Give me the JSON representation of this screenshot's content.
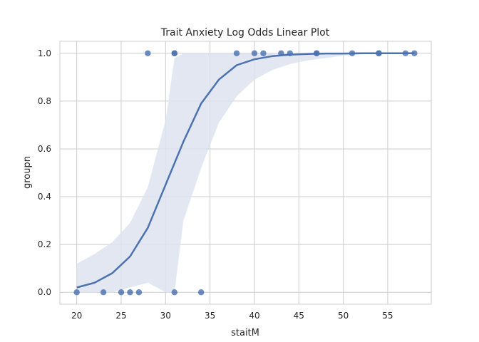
{
  "chart_data": {
    "type": "scatter",
    "title": "Trait Anxiety Log Odds Linear Plot",
    "xlabel": "staitM",
    "ylabel": "groupn",
    "xlim": [
      18.1,
      59.9
    ],
    "ylim": [
      -0.05,
      1.05
    ],
    "xticks": [
      20,
      25,
      30,
      35,
      40,
      45,
      50,
      55
    ],
    "yticks": [
      0.0,
      0.2,
      0.4,
      0.6,
      0.8,
      1.0
    ],
    "grid": true,
    "colors": {
      "point": "#4c72b0",
      "line": "#4c72b0",
      "band": "#dde3f0",
      "grid": "#cccccc",
      "frame": "#cccccc"
    },
    "series": [
      {
        "type": "scatter",
        "x": [
          20,
          23,
          25,
          26,
          27,
          31,
          34,
          28,
          31,
          31,
          38,
          40,
          41,
          43,
          44,
          47,
          47,
          51,
          54,
          54,
          57,
          58
        ],
        "y": [
          0,
          0,
          0,
          0,
          0,
          0,
          0,
          1,
          1,
          1,
          1,
          1,
          1,
          1,
          1,
          1,
          1,
          1,
          1,
          1,
          1,
          1
        ]
      },
      {
        "type": "line",
        "x": [
          20,
          22,
          24,
          26,
          28,
          30,
          32,
          34,
          36,
          38,
          40,
          42,
          44,
          46,
          48,
          50,
          52,
          54,
          56,
          58
        ],
        "y": [
          0.02,
          0.04,
          0.08,
          0.15,
          0.27,
          0.45,
          0.63,
          0.79,
          0.89,
          0.95,
          0.975,
          0.988,
          0.994,
          0.997,
          0.999,
          0.999,
          1.0,
          1.0,
          1.0,
          1.0
        ]
      },
      {
        "type": "band",
        "x": [
          20,
          22,
          24,
          26,
          28,
          30,
          31,
          32,
          34,
          36,
          38,
          40,
          42,
          44,
          46,
          48,
          50,
          52,
          54,
          56,
          58
        ],
        "lower": [
          0.0,
          0.0,
          0.0,
          0.02,
          0.04,
          0.0,
          0.0,
          0.3,
          0.52,
          0.71,
          0.82,
          0.89,
          0.93,
          0.955,
          0.97,
          0.98,
          0.99,
          0.995,
          0.998,
          0.999,
          1.0
        ],
        "upper": [
          0.12,
          0.16,
          0.21,
          0.29,
          0.44,
          0.72,
          0.98,
          1.0,
          1.0,
          1.0,
          1.0,
          1.0,
          1.0,
          1.0,
          1.0,
          1.0,
          1.0,
          1.0,
          1.0,
          1.0,
          1.0
        ]
      }
    ]
  }
}
